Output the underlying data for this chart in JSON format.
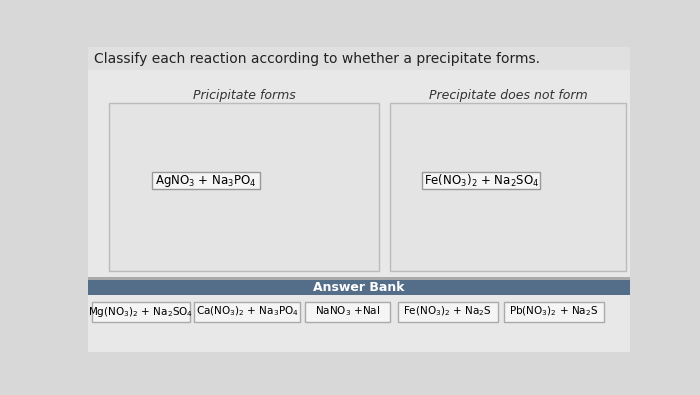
{
  "title": "Classify each reaction according to whether a precipitate forms.",
  "title_fontsize": 10,
  "bg_color": "#d8d8d8",
  "page_bg": "#e4e4e4",
  "box1_label": "Pricipitate forms",
  "box2_label": "Precipitate does not form",
  "box1_item": "AgNO$_3$ + Na$_3$PO$_4$",
  "box2_item": "Fe(NO$_3$)$_2$ + Na$_2$SO$_4$",
  "answer_bank_label": "Answer Bank",
  "answer_bank_bg": "#546e8a",
  "answer_bank_items": [
    "Mg(NO$_3$)$_2$ + Na$_2$SO$_4$",
    "Ca(NO$_3$)$_2$ + Na$_3$PO$_4$",
    "NaNO$_3$ +NaI",
    "Fe(NO$_3$)$_2$ + Na$_2$S",
    "Pb(NO$_3$)$_2$ + Na$_2$S"
  ],
  "item_box_color": "#f5f5f5",
  "item_box_edge": "#aaaaaa",
  "main_box_color": "#e8e8e8",
  "main_box_edge": "#bbbbbb",
  "white_area_color": "#f0f0f0",
  "title_area_color": "#e0e0e0"
}
